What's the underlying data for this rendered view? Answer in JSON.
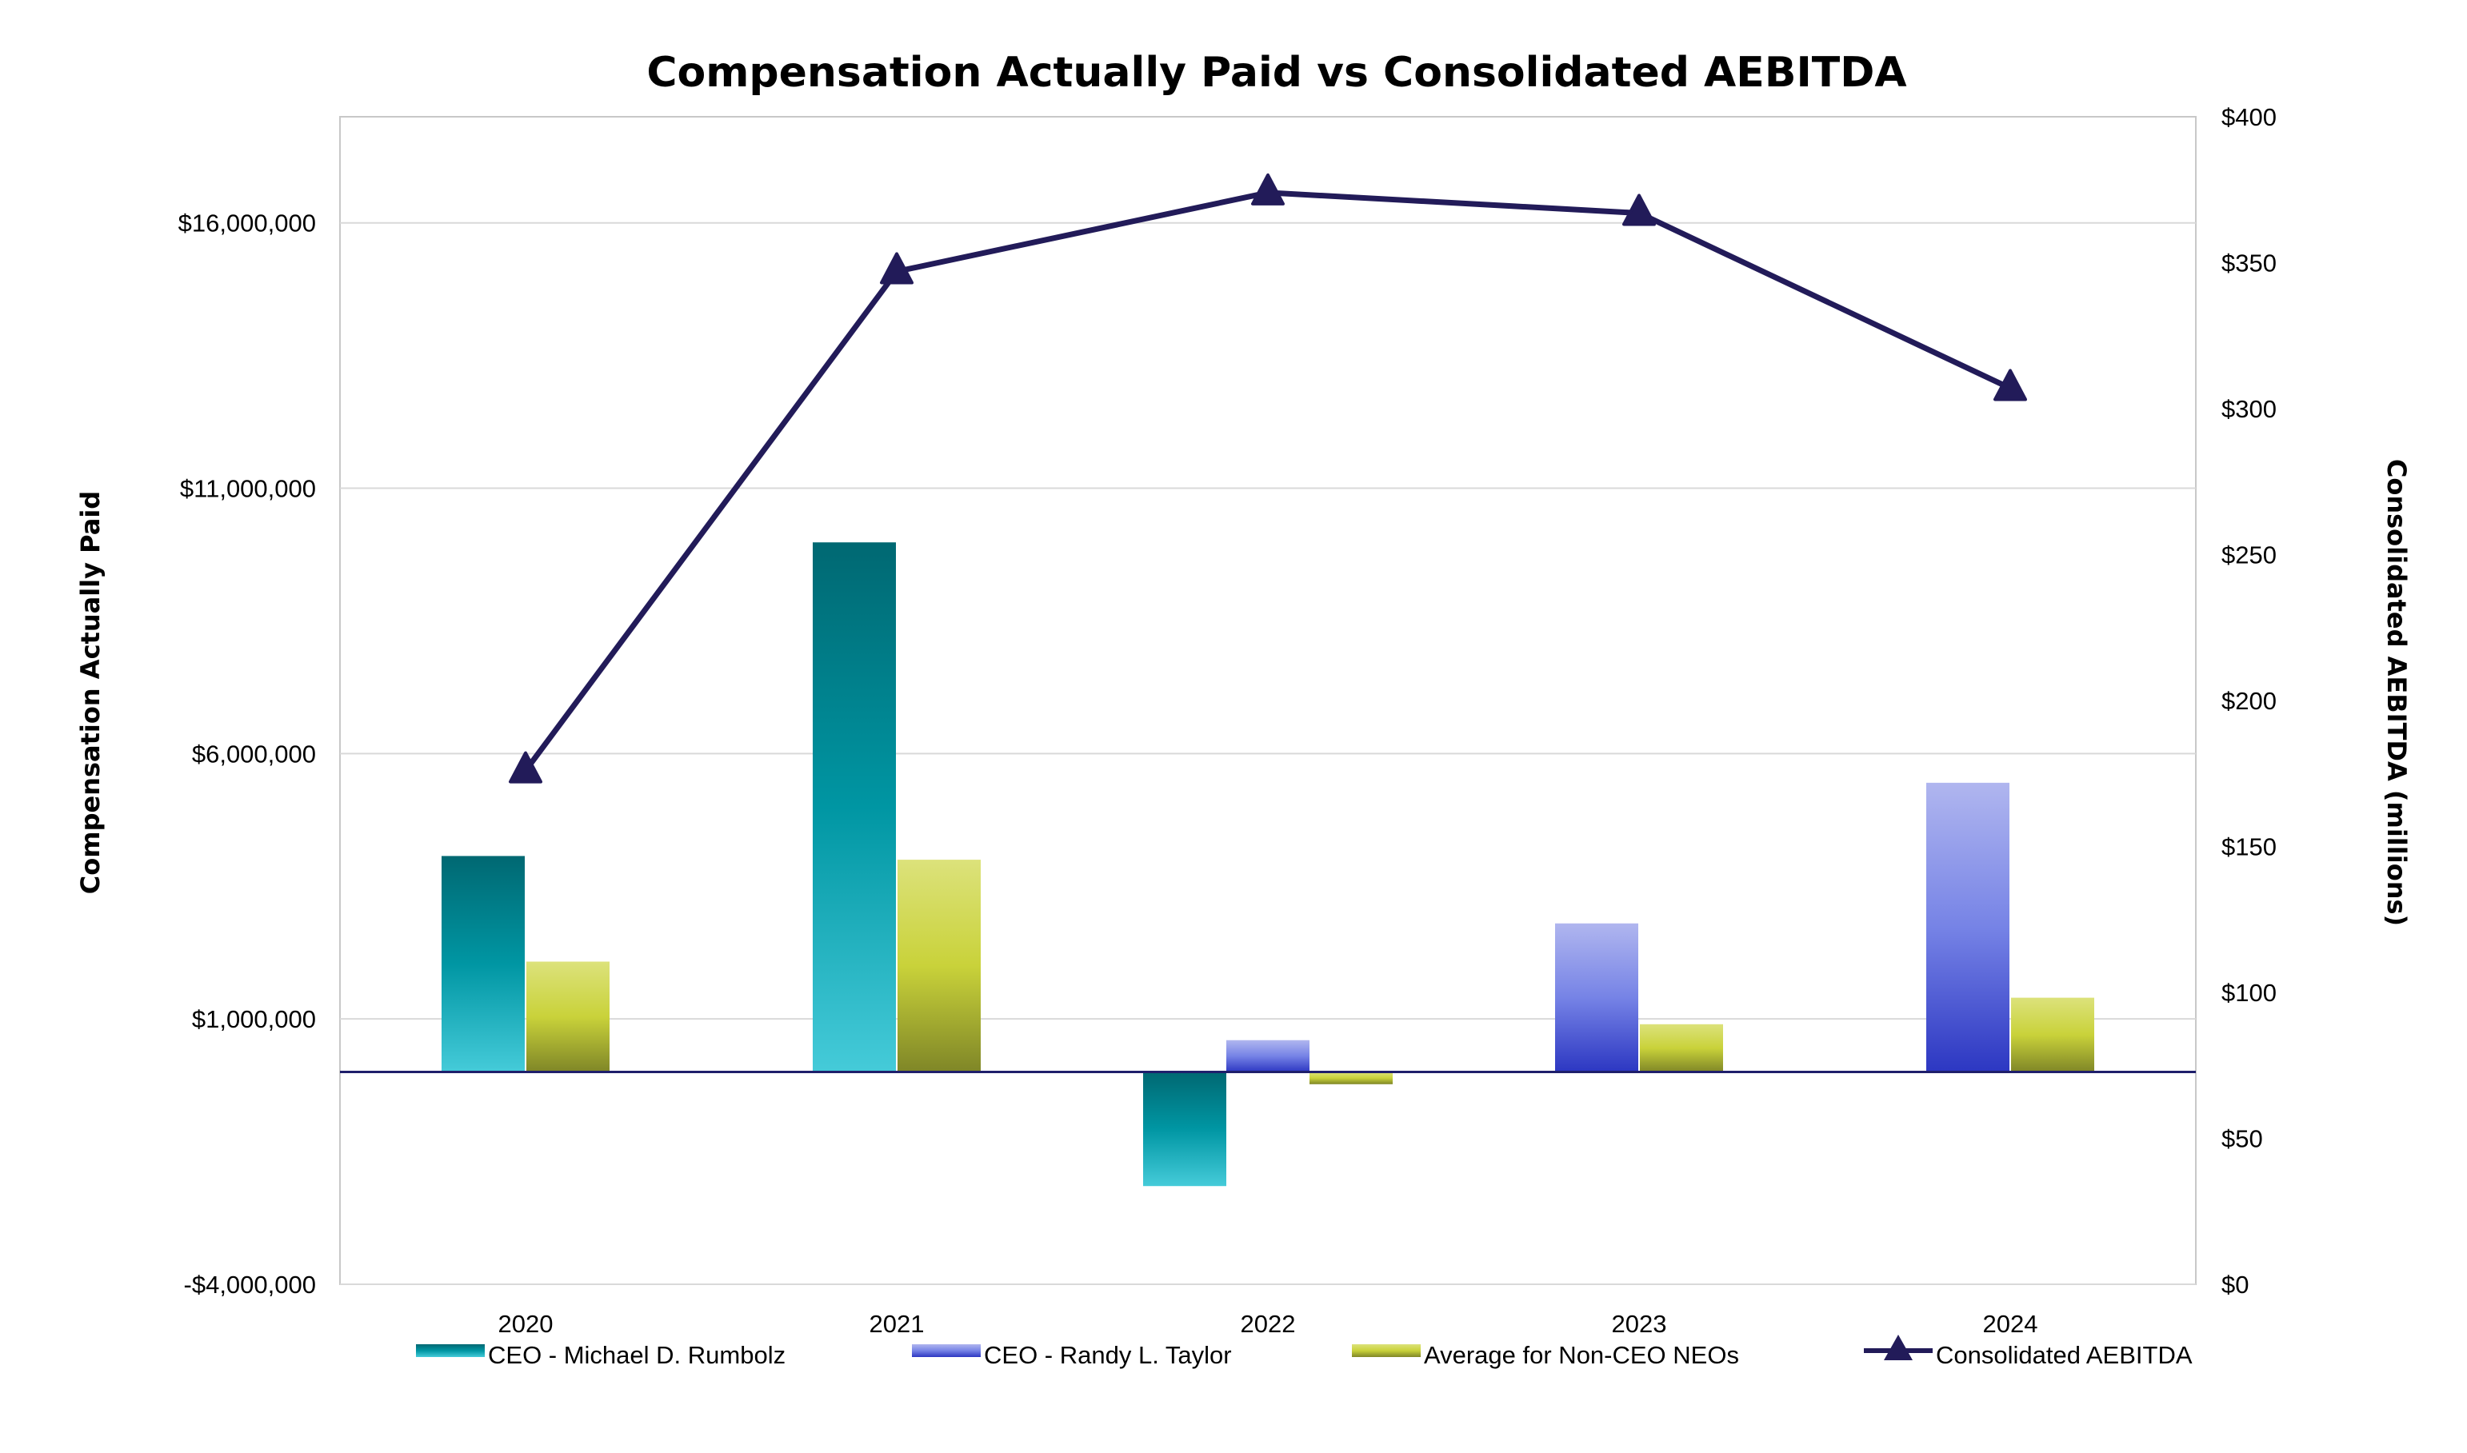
{
  "chart_data": {
    "type": "bar",
    "title": "Compensation Actually Paid vs Consolidated AEBITDA",
    "ylabel": "Compensation Actually Paid",
    "y2label": "Consolidated AEBITDA (millions)",
    "categories": [
      "2020",
      "2021",
      "2022",
      "2023",
      "2024"
    ],
    "ylim": [
      -4000000,
      18000000
    ],
    "yticks": [
      -4000000,
      1000000,
      6000000,
      11000000,
      16000000
    ],
    "ytick_labels": [
      "-$4,000,000",
      "$1,000,000",
      "$6,000,000",
      "$11,000,000",
      "$16,000,000"
    ],
    "y2lim": [
      0,
      400
    ],
    "y2ticks": [
      0,
      50,
      100,
      150,
      200,
      250,
      300,
      350,
      400
    ],
    "y2tick_labels": [
      "$0",
      "$50",
      "$100",
      "$150",
      "$200",
      "$250",
      "$300",
      "$350",
      "$400"
    ],
    "baseline": 0,
    "grid": true,
    "legend_position": "bottom",
    "series": [
      {
        "name": "CEO - Michael D. Rumbolz",
        "type": "bar",
        "axis": "left",
        "values": [
          4070000,
          9980000,
          -2150000,
          null,
          null
        ],
        "colors": [
          "#006872",
          "#0096a3",
          "#45cbd9"
        ]
      },
      {
        "name": "CEO - Randy L. Taylor",
        "type": "bar",
        "axis": "left",
        "values": [
          null,
          null,
          600000,
          2800000,
          5450000
        ],
        "colors": [
          "#b0b6ef",
          "#7683e6",
          "#2c37c2"
        ]
      },
      {
        "name": "Average for Non-CEO NEOs",
        "type": "bar",
        "axis": "left",
        "values": [
          2080000,
          4000000,
          -230000,
          900000,
          1400000
        ],
        "colors": [
          "#dce27b",
          "#c9d23a",
          "#7f8627"
        ]
      },
      {
        "name": "Consolidated AEBITDA",
        "type": "line",
        "axis": "right",
        "values": [
          176,
          347,
          374,
          367,
          307
        ],
        "color": "#221b59"
      }
    ]
  }
}
